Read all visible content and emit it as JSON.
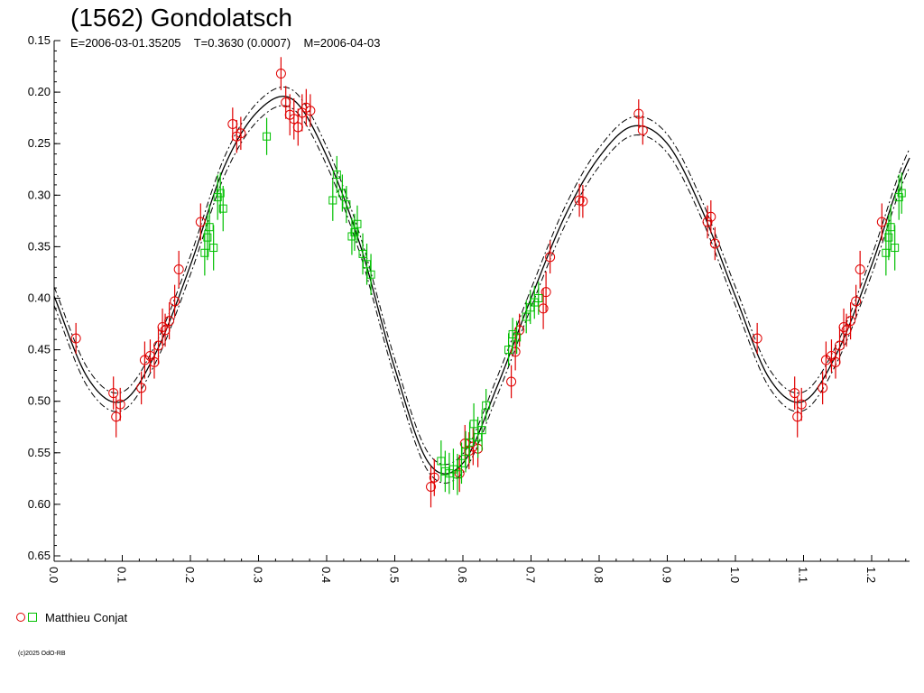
{
  "title": "(1562) Gondolatsch",
  "subtitle": "E=2006-03-01.35205    T=0.3630 (0.0007)    M=2006-04-03",
  "legend": {
    "label": "Matthieu Conjat"
  },
  "copyright": "(c)2025 OdO-RB",
  "colors": {
    "circle_series": "#e00000",
    "square_series": "#00c000",
    "curve": "#000000"
  },
  "chart_data": {
    "type": "scatter",
    "title": "(1562) Gondolatsch",
    "xlabel": "",
    "ylabel": "",
    "xlim": [
      0.0,
      1.25
    ],
    "ylim": [
      0.15,
      0.65
    ],
    "y_inverted": true,
    "grid": false,
    "legend_position": "bottom-left",
    "x_ticks": [
      "0.0",
      "0.1",
      "0.2",
      "0.3",
      "0.4",
      "0.5",
      "0.6",
      "0.7",
      "0.8",
      "0.9",
      "1.0",
      "1.1",
      "1.2"
    ],
    "y_ticks": [
      "0.15",
      "0.20",
      "0.25",
      "0.30",
      "0.35",
      "0.40",
      "0.45",
      "0.50",
      "0.55",
      "0.60",
      "0.65"
    ],
    "period_phase": 1.0,
    "series": [
      {
        "name": "Matthieu Conjat",
        "marker": "circle",
        "color": "#e00000",
        "points": [
          [
            0.032,
            0.439,
            0.015
          ],
          [
            0.087,
            0.492,
            0.016
          ],
          [
            0.091,
            0.515,
            0.02
          ],
          [
            0.097,
            0.503,
            0.016
          ],
          [
            0.128,
            0.487,
            0.016
          ],
          [
            0.133,
            0.46,
            0.018
          ],
          [
            0.141,
            0.456,
            0.016
          ],
          [
            0.147,
            0.462,
            0.016
          ],
          [
            0.153,
            0.446,
            0.018
          ],
          [
            0.159,
            0.428,
            0.018
          ],
          [
            0.163,
            0.431,
            0.016
          ],
          [
            0.169,
            0.422,
            0.018
          ],
          [
            0.177,
            0.403,
            0.016
          ],
          [
            0.183,
            0.372,
            0.018
          ],
          [
            0.215,
            0.326,
            0.018
          ],
          [
            0.262,
            0.231,
            0.016
          ],
          [
            0.268,
            0.243,
            0.016
          ],
          [
            0.274,
            0.24,
            0.016
          ],
          [
            0.333,
            0.182,
            0.016
          ],
          [
            0.34,
            0.21,
            0.016
          ],
          [
            0.346,
            0.222,
            0.02
          ],
          [
            0.352,
            0.226,
            0.02
          ],
          [
            0.358,
            0.234,
            0.018
          ],
          [
            0.364,
            0.22,
            0.018
          ],
          [
            0.37,
            0.215,
            0.018
          ],
          [
            0.376,
            0.218,
            0.016
          ],
          [
            0.553,
            0.583,
            0.02
          ],
          [
            0.558,
            0.574,
            0.018
          ],
          [
            0.595,
            0.57,
            0.018
          ],
          [
            0.603,
            0.541,
            0.018
          ],
          [
            0.609,
            0.548,
            0.018
          ],
          [
            0.615,
            0.544,
            0.018
          ],
          [
            0.622,
            0.546,
            0.018
          ],
          [
            0.671,
            0.481,
            0.016
          ],
          [
            0.677,
            0.452,
            0.018
          ],
          [
            0.683,
            0.431,
            0.016
          ],
          [
            0.718,
            0.41,
            0.02
          ],
          [
            0.722,
            0.394,
            0.02
          ],
          [
            0.728,
            0.36,
            0.016
          ],
          [
            0.771,
            0.305,
            0.016
          ],
          [
            0.776,
            0.306,
            0.016
          ],
          [
            0.858,
            0.221,
            0.014
          ],
          [
            0.864,
            0.237,
            0.014
          ],
          [
            0.959,
            0.326,
            0.016
          ],
          [
            0.964,
            0.321,
            0.016
          ],
          [
            0.97,
            0.347,
            0.016
          ],
          [
            1.032,
            0.439,
            0.015
          ],
          [
            1.087,
            0.492,
            0.016
          ],
          [
            1.091,
            0.515,
            0.02
          ],
          [
            1.097,
            0.503,
            0.016
          ],
          [
            1.128,
            0.487,
            0.016
          ],
          [
            1.133,
            0.46,
            0.018
          ],
          [
            1.141,
            0.456,
            0.016
          ],
          [
            1.147,
            0.462,
            0.016
          ],
          [
            1.153,
            0.446,
            0.018
          ],
          [
            1.159,
            0.428,
            0.018
          ],
          [
            1.163,
            0.431,
            0.016
          ],
          [
            1.169,
            0.422,
            0.018
          ],
          [
            1.177,
            0.403,
            0.016
          ],
          [
            1.183,
            0.372,
            0.018
          ],
          [
            1.215,
            0.326,
            0.018
          ]
        ]
      },
      {
        "name": "Matthieu Conjat",
        "marker": "square",
        "color": "#00c000",
        "points": [
          [
            0.221,
            0.356,
            0.022
          ],
          [
            0.225,
            0.341,
            0.022
          ],
          [
            0.228,
            0.331,
            0.022
          ],
          [
            0.234,
            0.351,
            0.022
          ],
          [
            0.24,
            0.302,
            0.022
          ],
          [
            0.244,
            0.298,
            0.02
          ],
          [
            0.248,
            0.313,
            0.022
          ],
          [
            0.312,
            0.243,
            0.018
          ],
          [
            0.409,
            0.305,
            0.02
          ],
          [
            0.415,
            0.28,
            0.018
          ],
          [
            0.423,
            0.298,
            0.018
          ],
          [
            0.429,
            0.309,
            0.018
          ],
          [
            0.437,
            0.34,
            0.018
          ],
          [
            0.441,
            0.336,
            0.018
          ],
          [
            0.445,
            0.328,
            0.018
          ],
          [
            0.453,
            0.357,
            0.02
          ],
          [
            0.459,
            0.367,
            0.02
          ],
          [
            0.465,
            0.377,
            0.02
          ],
          [
            0.568,
            0.558,
            0.02
          ],
          [
            0.574,
            0.568,
            0.02
          ],
          [
            0.58,
            0.57,
            0.02
          ],
          [
            0.586,
            0.566,
            0.02
          ],
          [
            0.592,
            0.571,
            0.02
          ],
          [
            0.598,
            0.56,
            0.02
          ],
          [
            0.604,
            0.549,
            0.02
          ],
          [
            0.61,
            0.54,
            0.02
          ],
          [
            0.616,
            0.522,
            0.02
          ],
          [
            0.622,
            0.535,
            0.02
          ],
          [
            0.628,
            0.528,
            0.02
          ],
          [
            0.634,
            0.504,
            0.016
          ],
          [
            0.667,
            0.45,
            0.016
          ],
          [
            0.673,
            0.435,
            0.016
          ],
          [
            0.679,
            0.438,
            0.016
          ],
          [
            0.693,
            0.418,
            0.016
          ],
          [
            0.699,
            0.409,
            0.016
          ],
          [
            0.705,
            0.404,
            0.016
          ],
          [
            0.711,
            0.4,
            0.016
          ],
          [
            1.221,
            0.356,
            0.022
          ],
          [
            1.225,
            0.341,
            0.022
          ],
          [
            1.228,
            0.331,
            0.022
          ],
          [
            1.234,
            0.351,
            0.022
          ],
          [
            1.24,
            0.302,
            0.022
          ],
          [
            1.244,
            0.298,
            0.02
          ]
        ]
      }
    ],
    "fit_curve": {
      "mean": 0.3865,
      "harmonics": [
        [
          0.0,
          0.0
        ],
        [
          0.0,
          0.0
        ]
      ],
      "samples_x": [
        0.0,
        0.05,
        0.1,
        0.15,
        0.2,
        0.25,
        0.3,
        0.35,
        0.4,
        0.45,
        0.5,
        0.55,
        0.6,
        0.65,
        0.7,
        0.75,
        0.8,
        0.85,
        0.9,
        0.95,
        1.0
      ],
      "samples_y": [
        0.398,
        0.478,
        0.5,
        0.452,
        0.368,
        0.272,
        0.218,
        0.207,
        0.262,
        0.35,
        0.468,
        0.56,
        0.56,
        0.486,
        0.4,
        0.32,
        0.263,
        0.233,
        0.25,
        0.313,
        0.398
      ],
      "envelope_offset": 0.009
    }
  }
}
